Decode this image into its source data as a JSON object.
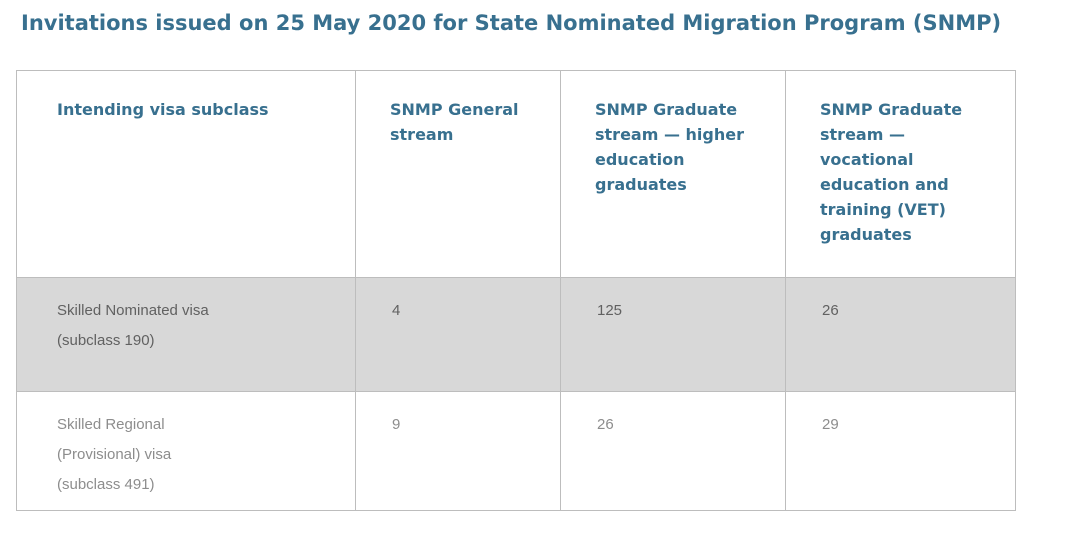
{
  "page": {
    "title": "Invitations issued on 25 May 2020 for State Nominated Migration Program (SNMP)"
  },
  "colors": {
    "accent_teal": "#38708f",
    "shaded_row_bg": "#d8d8d8",
    "table_border": "#bdbdbd",
    "shaded_row_text": "#616161",
    "plain_row_text": "#8d8d8d"
  },
  "table": {
    "columns": [
      {
        "label": "Intending visa subclass"
      },
      {
        "label": "SNMP General\nstream"
      },
      {
        "label": "SNMP Graduate\nstream — higher\neducation\ngraduates"
      },
      {
        "label": "SNMP Graduate\nstream —\nvocational\neducation and\ntraining (VET)\ngraduates"
      }
    ],
    "rows": [
      {
        "cells": [
          "Skilled Nominated visa\n(subclass 190)",
          "4",
          "125",
          "26"
        ]
      },
      {
        "cells": [
          "Skilled Regional\n(Provisional) visa\n(subclass 491)",
          "9",
          "26",
          "29"
        ]
      }
    ]
  }
}
